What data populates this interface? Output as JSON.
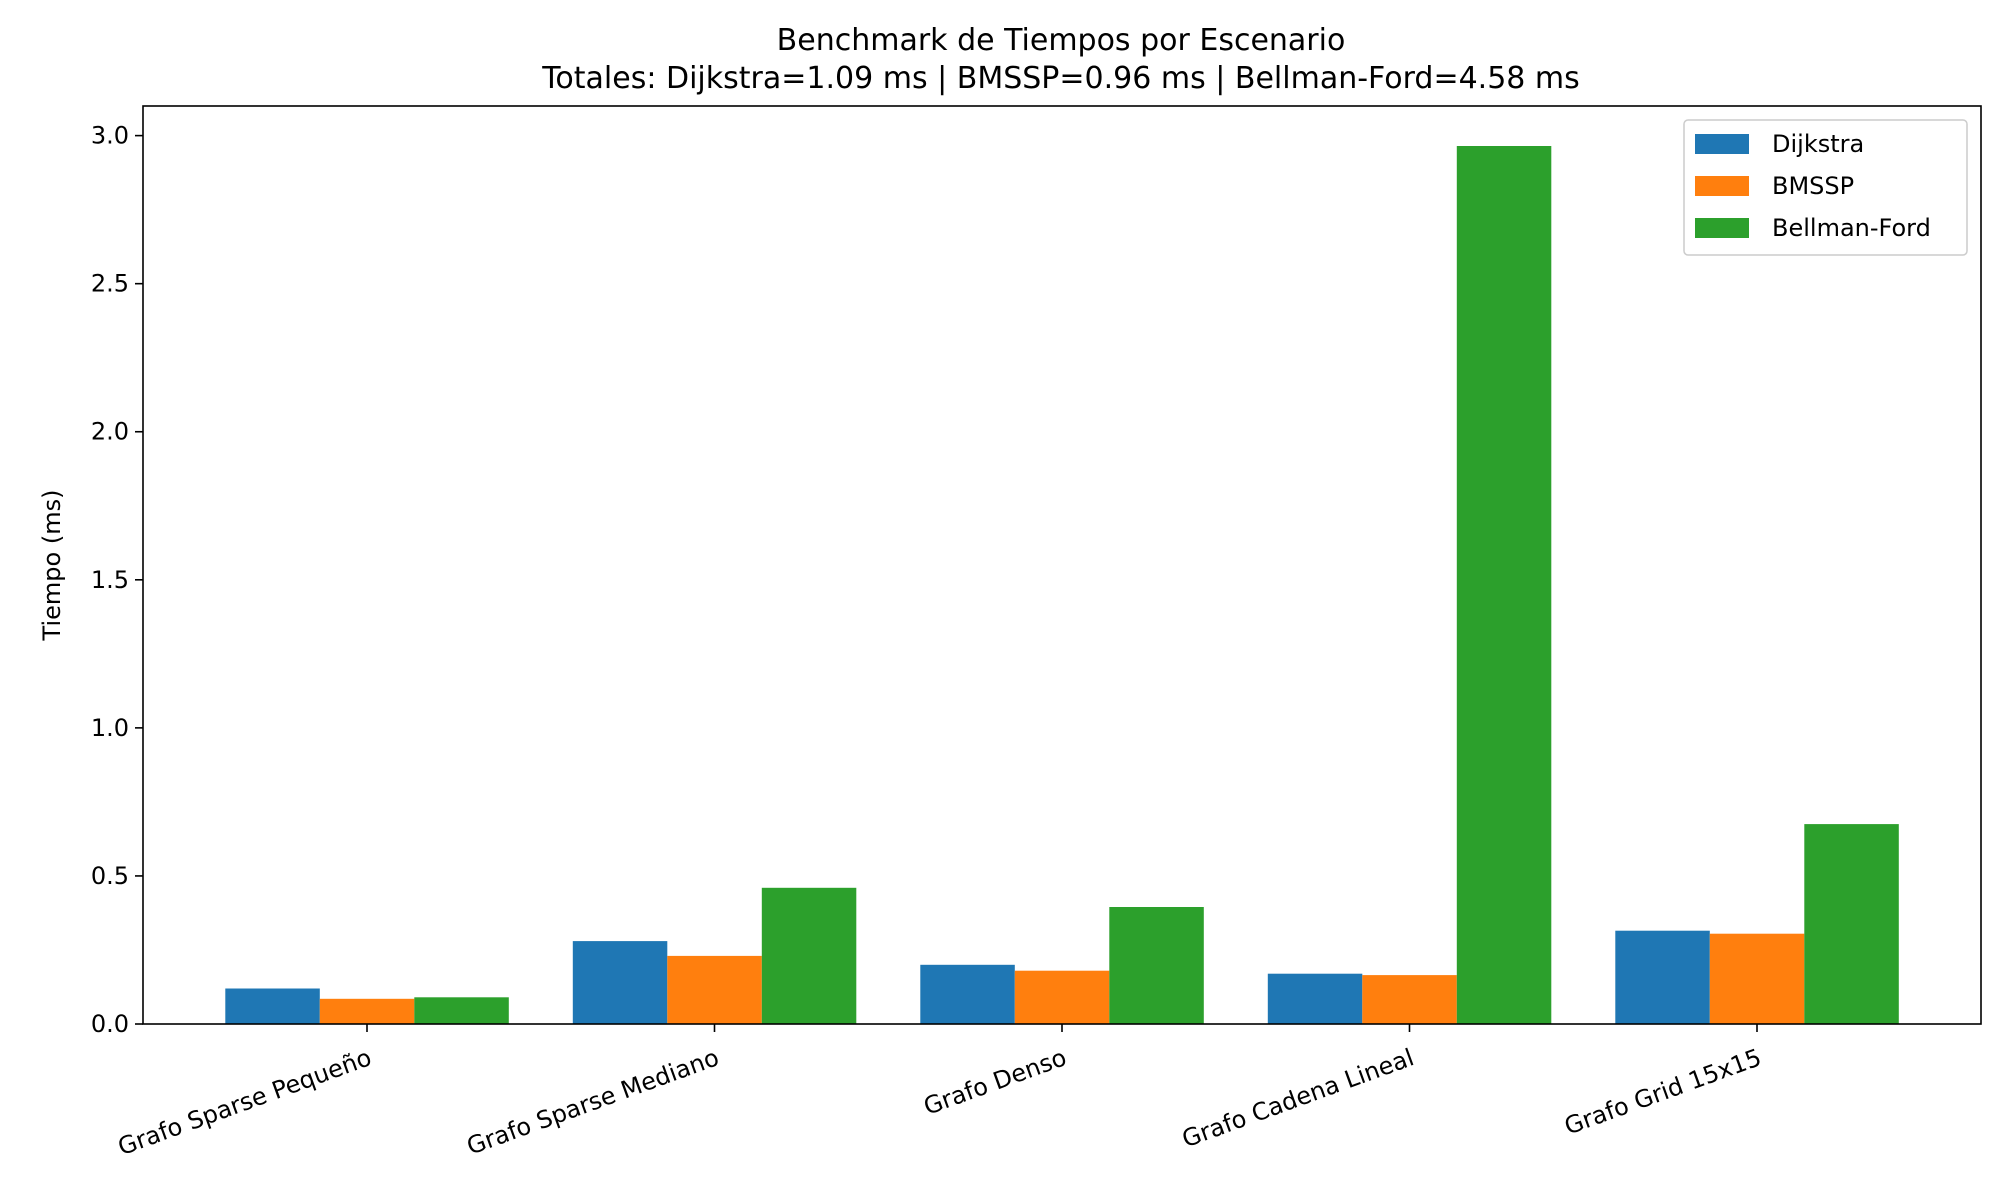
{
  "chart_data": {
    "type": "bar",
    "title": "Benchmark de Tiempos por Escenario",
    "subtitle": "Totales: Dijkstra=1.09 ms | BMSSP=0.96 ms | Bellman-Ford=4.58 ms",
    "xlabel": "",
    "ylabel": "Tiempo (ms)",
    "ylim": [
      0,
      3.1
    ],
    "yticks": [
      "0.0",
      "0.5",
      "1.0",
      "1.5",
      "2.0",
      "2.5",
      "3.0"
    ],
    "categories": [
      "Grafo Sparse Pequeño",
      "Grafo Sparse Mediano",
      "Grafo Denso",
      "Grafo Cadena Lineal",
      "Grafo Grid 15x15"
    ],
    "series": [
      {
        "name": "Dijkstra",
        "color": "#1f77b4",
        "values": [
          0.12,
          0.28,
          0.2,
          0.17,
          0.315
        ]
      },
      {
        "name": "BMSSP",
        "color": "#ff7f0e",
        "values": [
          0.085,
          0.23,
          0.18,
          0.165,
          0.305
        ]
      },
      {
        "name": "Bellman-Ford",
        "color": "#2ca02c",
        "values": [
          0.09,
          0.46,
          0.395,
          2.965,
          0.675
        ]
      }
    ],
    "legend_position": "top-right",
    "grid": false
  }
}
